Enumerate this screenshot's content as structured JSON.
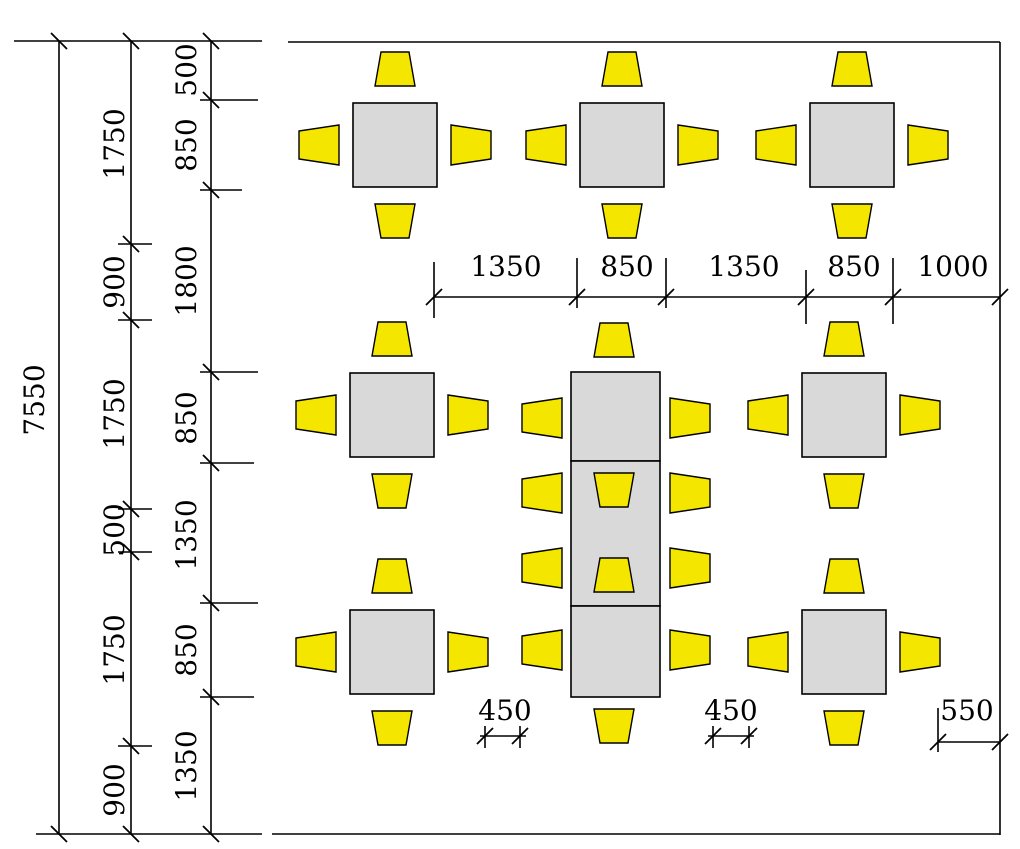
{
  "colors": {
    "chair": "#f5e600",
    "table": "#d9d9d9",
    "line": "#000000",
    "background": "#ffffff"
  },
  "left_dimensions": {
    "total": "7550",
    "col2": [
      "1750",
      "900",
      "1750",
      "500",
      "1750",
      "900"
    ],
    "col3": [
      "500",
      "850",
      "1800",
      "850",
      "1350",
      "850",
      "1350"
    ]
  },
  "horizontal_dimensions": {
    "row_top": [
      "1350",
      "850",
      "1350",
      "850",
      "1000"
    ],
    "bottom": [
      "450",
      "450",
      "550"
    ]
  },
  "furniture": {
    "square_tables": 7,
    "long_table_segments": 3,
    "chair_icon": "chair-icon",
    "table_icon": "table-icon"
  }
}
